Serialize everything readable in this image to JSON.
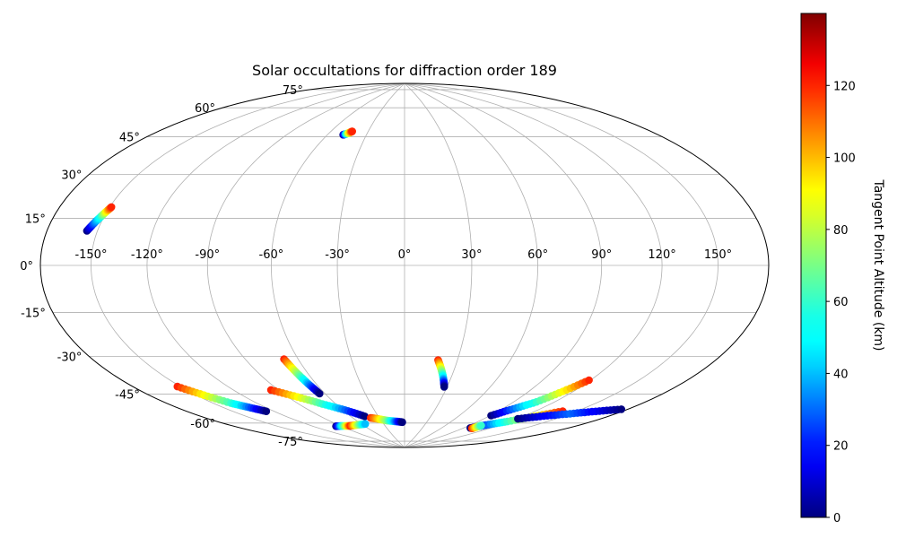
{
  "chart_data": {
    "type": "scatter",
    "title": "Solar occultations for diffraction order 189",
    "projection": "hammer",
    "grid": true,
    "lon_ticks": [
      -150,
      -120,
      -90,
      -60,
      -30,
      0,
      30,
      60,
      90,
      120,
      150
    ],
    "lat_ticks": [
      -75,
      -60,
      -45,
      -30,
      -15,
      0,
      15,
      30,
      45,
      60,
      75
    ],
    "lon_tick_labels": [
      "-150°",
      "-120°",
      "-90°",
      "-60°",
      "-30°",
      "0°",
      "30°",
      "60°",
      "90°",
      "120°",
      "150°"
    ],
    "lat_tick_labels": [
      "-75°",
      "-60°",
      "-45°",
      "-30°",
      "-15°",
      "0°",
      "15°",
      "30°",
      "45°",
      "60°",
      "75°"
    ],
    "colorbar": {
      "label": "Tangent Point Altitude (km)",
      "colormap": "jet",
      "range": [
        0,
        140
      ],
      "ticks": [
        0,
        20,
        40,
        60,
        80,
        100,
        120
      ],
      "tick_labels": [
        "0",
        "20",
        "40",
        "60",
        "80",
        "100",
        "120"
      ]
    },
    "series": [
      {
        "points": [
          [
            -48,
            60,
            0
          ],
          [
            -45,
            61,
            80
          ],
          [
            -43,
            62,
            120
          ]
        ]
      },
      {
        "points": [
          [
            -156,
            12,
            0
          ],
          [
            -152,
            17,
            50
          ],
          [
            -149,
            21,
            120
          ]
        ]
      },
      {
        "points": [
          [
            -152,
            -46,
            120
          ],
          [
            -138,
            -56,
            60
          ],
          [
            -126,
            -62,
            0
          ]
        ]
      },
      {
        "points": [
          [
            -95,
            -54,
            120
          ],
          [
            -71,
            -63,
            60
          ],
          [
            -45,
            -71,
            0
          ]
        ]
      },
      {
        "points": [
          [
            -68,
            -41,
            120
          ],
          [
            -66,
            -50,
            60
          ],
          [
            -64,
            -58,
            0
          ]
        ]
      },
      {
        "points": [
          [
            -96,
            -74,
            0
          ],
          [
            -78,
            -75,
            120
          ],
          [
            -55,
            -75,
            40
          ]
        ]
      },
      {
        "points": [
          [
            -40,
            -72,
            120
          ],
          [
            -22,
            -74,
            70
          ],
          [
            -3,
            -75,
            0
          ]
        ]
      },
      {
        "points": [
          [
            19,
            -43,
            120
          ],
          [
            24,
            -50,
            60
          ],
          [
            28,
            -56,
            0
          ]
        ]
      },
      {
        "points": [
          [
            91,
            -68,
            0
          ],
          [
            107,
            -59,
            60
          ],
          [
            119,
            -47,
            120
          ]
        ]
      },
      {
        "points": [
          [
            98,
            -75,
            0
          ],
          [
            118,
            -69,
            60
          ],
          [
            140,
            -60,
            120
          ]
        ]
      },
      {
        "points": [
          [
            121,
            -67,
            0
          ],
          [
            150,
            -60,
            30
          ],
          [
            176,
            -53,
            0
          ]
        ]
      },
      {
        "points": [
          [
            101,
            -75,
            120
          ],
          [
            103,
            -73,
            60
          ]
        ]
      }
    ]
  }
}
